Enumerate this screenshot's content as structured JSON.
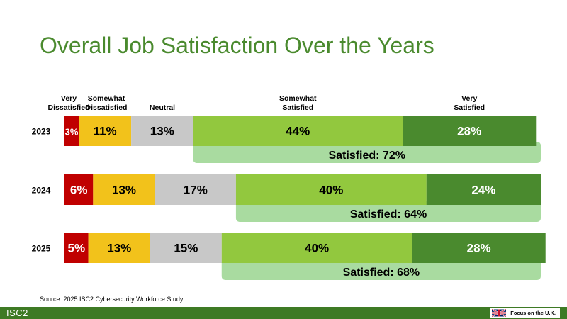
{
  "title": "Overall Job Satisfaction Over the Years",
  "source": "Source: 2025 ISC2 Cybersecurity Workforce Study.",
  "footer": {
    "brand": "ISC2",
    "focus": "Focus on the U.K.",
    "flag_icon": "uk-flag-icon"
  },
  "chart_data": {
    "type": "bar",
    "orientation": "horizontal-stacked-100",
    "categories": [
      "2023",
      "2024",
      "2025"
    ],
    "series": [
      {
        "name": "Very Dissatisfied",
        "values": [
          3,
          6,
          5
        ],
        "labels": [
          "3%",
          "6%",
          "5%"
        ],
        "color": "#c00000"
      },
      {
        "name": "Somewhat Dissatisfied",
        "values": [
          11,
          13,
          13
        ],
        "labels": [
          "11%",
          "13%",
          "13%"
        ],
        "color": "#f2c21b"
      },
      {
        "name": "Neutral",
        "values": [
          13,
          17,
          15
        ],
        "labels": [
          "13%",
          "17%",
          "15%"
        ],
        "color": "#c8c8c8"
      },
      {
        "name": "Somewhat Satisfied",
        "values": [
          44,
          40,
          40
        ],
        "labels": [
          "44%",
          "40%",
          "40%"
        ],
        "color": "#92c83e"
      },
      {
        "name": "Very Satisfied",
        "values": [
          28,
          24,
          28
        ],
        "labels": [
          "28%",
          "24%",
          "28%"
        ],
        "color": "#4a8a2e"
      }
    ],
    "legend_labels": [
      [
        "Very",
        "Dissatisfied"
      ],
      [
        "Somewhat",
        "Dissatisfied"
      ],
      [
        "Neutral"
      ],
      [
        "Somewhat",
        "Satisfied"
      ],
      [
        "Very",
        "Satisfied"
      ]
    ],
    "satisfied_totals": [
      72,
      64,
      68
    ],
    "satisfied_labels": [
      "Satisfied: 72%",
      "Satisfied: 64%",
      "Satisfied: 68%"
    ],
    "satisfied_color": "#a9dba0",
    "legend_placement": "top",
    "grid": false
  }
}
